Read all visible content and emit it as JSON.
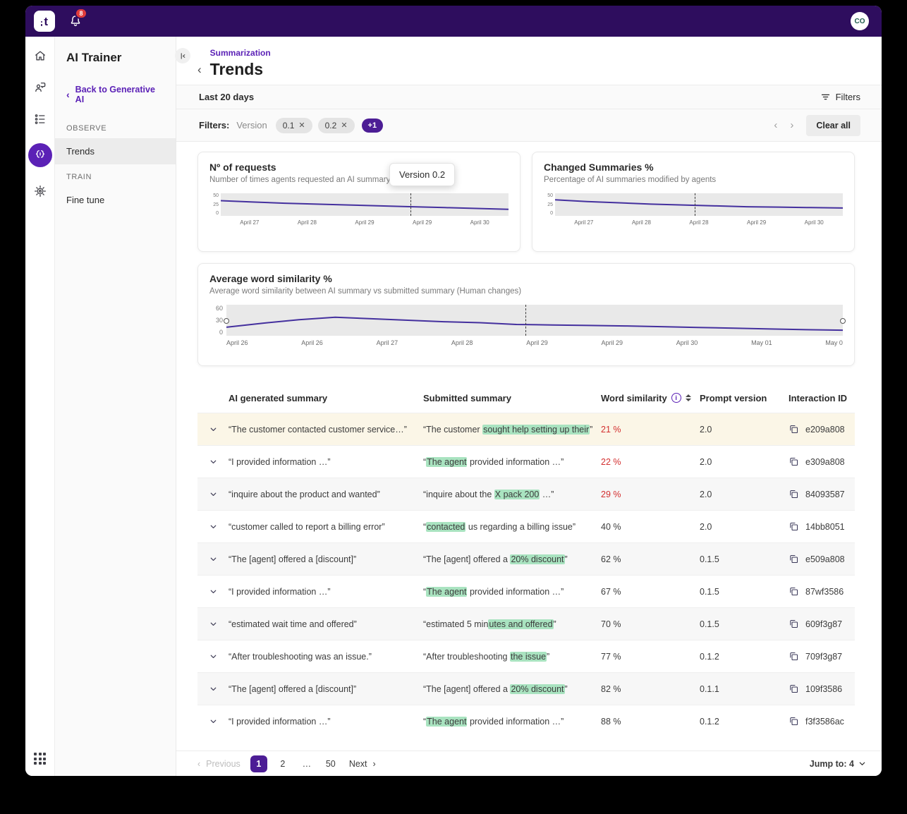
{
  "colors": {
    "topbar": "#2e0d5e",
    "accent": "#5b21b6",
    "chart_line": "#44309e",
    "highlight_green": "#a9e3c0",
    "negative_red": "#d32f2f",
    "cream_row": "#fbf6e7",
    "badge_red": "#e03c3c"
  },
  "topbar": {
    "logo_text": "t",
    "notification_count": "8",
    "avatar_initials": "CO"
  },
  "rail": {
    "icons": [
      "home-icon",
      "support-agent-icon",
      "checklist-icon",
      "ai-trainer-icon",
      "settings-icon",
      "apps-grid-icon"
    ],
    "active": "ai-trainer"
  },
  "sidebar": {
    "title": "AI Trainer",
    "back_label": "Back to Generative AI",
    "sections": [
      {
        "label": "OBSERVE",
        "items": [
          {
            "label": "Trends",
            "active": true
          }
        ]
      },
      {
        "label": "TRAIN",
        "items": [
          {
            "label": "Fine tune",
            "active": false
          }
        ]
      }
    ]
  },
  "header": {
    "breadcrumb": "Summarization",
    "title": "Trends"
  },
  "toolbar": {
    "range_label": "Last 20 days",
    "filters_button": "Filters"
  },
  "filterbar": {
    "label": "Filters:",
    "field": "Version",
    "chips": [
      "0.1",
      "0.2"
    ],
    "more_pill": "+1",
    "clear_all": "Clear all"
  },
  "tooltip": {
    "text": "Version 0.2"
  },
  "chart_data": [
    {
      "type": "line",
      "title": "Nº of requests",
      "subtitle": "Number of times agents requested an AI summary",
      "x_labels": [
        "April 27",
        "April 28",
        "April 29",
        "April 29",
        "April 30"
      ],
      "values": [
        34,
        31,
        28,
        26,
        24,
        22,
        20,
        18,
        16,
        14
      ],
      "ylim": [
        0,
        50
      ],
      "yticks": [
        "50",
        "25",
        "0"
      ],
      "marker_x_frac": 0.66,
      "annotation": "Version 0.2",
      "legend": "none",
      "grid": "off"
    },
    {
      "type": "line",
      "title": "Changed Summaries %",
      "subtitle": "Percentage of AI summaries modified by agents",
      "x_labels": [
        "April 27",
        "April 28",
        "April 28",
        "April 29",
        "April 30"
      ],
      "values": [
        36,
        32,
        29,
        26,
        24,
        22,
        20,
        19,
        18,
        17
      ],
      "ylim": [
        0,
        50
      ],
      "yticks": [
        "50",
        "25",
        "0"
      ],
      "marker_x_frac": 0.485,
      "legend": "none",
      "grid": "off"
    },
    {
      "type": "line",
      "title": "Average word similarity %",
      "subtitle": "Average word similarity between AI summary vs submitted summary (Human changes)",
      "x_labels": [
        "April 26",
        "April 26",
        "April 27",
        "April 28",
        "April 29",
        "April 29",
        "April 30",
        "May 01",
        "May 0"
      ],
      "values": [
        16,
        24,
        31,
        36,
        33,
        30,
        27,
        25,
        21.5,
        20.5,
        19.5,
        18.5,
        17,
        15.5,
        14,
        12.5,
        11,
        10
      ],
      "ylim": [
        0,
        60
      ],
      "yticks": [
        "60",
        "30",
        "0"
      ],
      "marker_x_frac": 0.485,
      "endpoint_marker_value": 28,
      "legend": "none",
      "grid": "off"
    }
  ],
  "table": {
    "columns": [
      "AI generated summary",
      "Submitted summary",
      "Word similarity",
      "Prompt version",
      "Interaction ID"
    ],
    "rows": [
      {
        "bg": "cream",
        "ai": "“The customer contacted customer service…”",
        "submitted": [
          {
            "t": "“The customer "
          },
          {
            "t": "sought help setting up their",
            "h": true
          },
          {
            "t": "”"
          }
        ],
        "similarity": "21 %",
        "red": true,
        "version": "2.0",
        "interaction": "e209a808"
      },
      {
        "bg": "white",
        "ai": "“I provided information …”",
        "submitted": [
          {
            "t": "“"
          },
          {
            "t": "The agent",
            "h": true
          },
          {
            "t": " provided information …”"
          }
        ],
        "similarity": "22 %",
        "red": true,
        "version": "2.0",
        "interaction": "e309a808"
      },
      {
        "bg": "gray",
        "ai": "“inquire about the product and wanted”",
        "submitted": [
          {
            "t": "“inquire about the "
          },
          {
            "t": "X pack 200",
            "h": true
          },
          {
            "t": " …”"
          }
        ],
        "similarity": "29 %",
        "red": true,
        "version": "2.0",
        "interaction": "84093587"
      },
      {
        "bg": "white",
        "ai": "“customer called to report a billing error”",
        "submitted": [
          {
            "t": "“"
          },
          {
            "t": "contacted",
            "h": true
          },
          {
            "t": " us regarding a billing issue”"
          }
        ],
        "similarity": "40 %",
        "red": false,
        "version": "2.0",
        "interaction": "14bb8051"
      },
      {
        "bg": "gray",
        "ai": "“The [agent] offered a [discount]”",
        "submitted": [
          {
            "t": "“The [agent] offered a "
          },
          {
            "t": "20% discount",
            "h": true
          },
          {
            "t": "”"
          }
        ],
        "similarity": "62 %",
        "red": false,
        "version": "0.1.5",
        "interaction": "e509a808"
      },
      {
        "bg": "white",
        "ai": "“I provided information …”",
        "submitted": [
          {
            "t": "“"
          },
          {
            "t": "The agent",
            "h": true
          },
          {
            "t": " provided information …”"
          }
        ],
        "similarity": "67 %",
        "red": false,
        "version": "0.1.5",
        "interaction": "87wf3586"
      },
      {
        "bg": "gray",
        "ai": "“estimated wait time and offered”",
        "submitted": [
          {
            "t": "“estimated 5 min"
          },
          {
            "t": "utes and offered",
            "h": true
          },
          {
            "t": "”"
          }
        ],
        "similarity": "70 %",
        "red": false,
        "version": "0.1.5",
        "interaction": "609f3g87"
      },
      {
        "bg": "white",
        "ai": "“After troubleshooting was an issue.”",
        "submitted": [
          {
            "t": "“After troubleshooting "
          },
          {
            "t": "the issue",
            "h": true
          },
          {
            "t": "”"
          }
        ],
        "similarity": "77 %",
        "red": false,
        "version": "0.1.2",
        "interaction": "709f3g87"
      },
      {
        "bg": "gray",
        "ai": "“The [agent] offered a [discount]”",
        "submitted": [
          {
            "t": "“The [agent] offered a "
          },
          {
            "t": "20% discount",
            "h": true
          },
          {
            "t": "”"
          }
        ],
        "similarity": "82 %",
        "red": false,
        "version": "0.1.1",
        "interaction": "109f3586"
      },
      {
        "bg": "white",
        "ai": "“I provided information …”",
        "submitted": [
          {
            "t": "“"
          },
          {
            "t": "The agent",
            "h": true
          },
          {
            "t": " provided information …”"
          }
        ],
        "similarity": "88 %",
        "red": false,
        "version": "0.1.2",
        "interaction": "f3f3586ac"
      }
    ]
  },
  "pagination": {
    "previous": "Previous",
    "pages": [
      {
        "label": "1",
        "active": true
      },
      {
        "label": "2",
        "active": false
      },
      {
        "label": "…",
        "active": false
      },
      {
        "label": "50",
        "active": false
      }
    ],
    "next": "Next",
    "jump_label": "Jump to: 4"
  }
}
